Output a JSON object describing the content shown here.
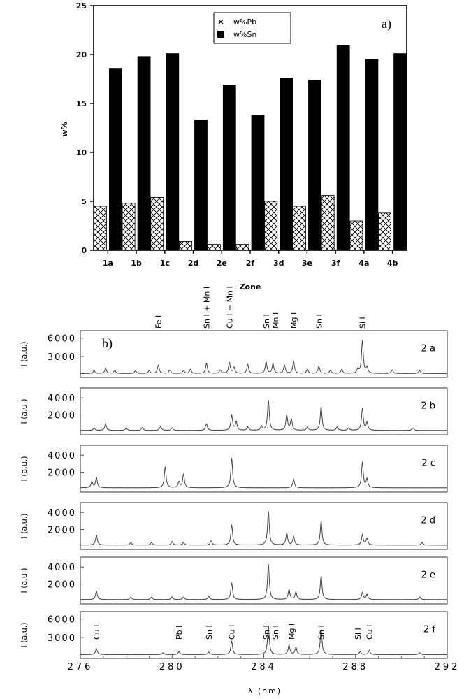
{
  "chart_data": [
    {
      "type": "bar",
      "panel_label": "a)",
      "xlabel": "Zone",
      "ylabel": "w%",
      "ylim": [
        0,
        25
      ],
      "yticks": [
        "0",
        "5",
        "10",
        "15",
        "20",
        "25"
      ],
      "categories": [
        "1a",
        "1b",
        "1c",
        "2d",
        "2e",
        "2f",
        "3d",
        "3e",
        "3f",
        "4a",
        "4b"
      ],
      "legend_position": "top-center",
      "series": [
        {
          "name": "w%Pb",
          "pattern": "crosshatch",
          "values": [
            4.5,
            4.8,
            5.4,
            0.9,
            0.6,
            0.6,
            5.0,
            4.5,
            5.6,
            3.0,
            3.8
          ]
        },
        {
          "name": "w%Sn",
          "pattern": "solid",
          "color": "#000000",
          "values": [
            18.6,
            19.8,
            20.1,
            13.3,
            16.9,
            13.8,
            17.6,
            17.4,
            20.9,
            19.5,
            20.1
          ]
        }
      ]
    },
    {
      "type": "line",
      "panel_label": "b)",
      "xlabel": "λ (nm)",
      "ylabel": "I (a.u.)",
      "xlim": [
        276,
        292
      ],
      "xticks": [
        "276",
        "280",
        "284",
        "288",
        "292"
      ],
      "panels": [
        {
          "name": "2 a",
          "ylim": [
            0,
            7000
          ],
          "yticks": [
            "3000",
            "6000"
          ],
          "peaks": [
            [
              276.6,
              500
            ],
            [
              277.1,
              900
            ],
            [
              277.5,
              600
            ],
            [
              278.4,
              450
            ],
            [
              279.0,
              500
            ],
            [
              279.4,
              1400
            ],
            [
              279.9,
              600
            ],
            [
              280.5,
              500
            ],
            [
              280.8,
              700
            ],
            [
              281.5,
              1700
            ],
            [
              282.1,
              600
            ],
            [
              282.5,
              1800
            ],
            [
              282.7,
              1000
            ],
            [
              283.3,
              1500
            ],
            [
              284.1,
              1900
            ],
            [
              284.4,
              1600
            ],
            [
              284.9,
              1400
            ],
            [
              285.3,
              2000
            ],
            [
              285.9,
              700
            ],
            [
              286.4,
              1200
            ],
            [
              286.9,
              500
            ],
            [
              287.4,
              700
            ],
            [
              288.1,
              700
            ],
            [
              288.3,
              5400
            ],
            [
              288.5,
              1000
            ],
            [
              289.6,
              600
            ],
            [
              290.8,
              500
            ]
          ]
        },
        {
          "name": "2 b",
          "ylim": [
            0,
            5000
          ],
          "yticks": [
            "2000",
            "4000"
          ],
          "peaks": [
            [
              276.6,
              300
            ],
            [
              277.1,
              800
            ],
            [
              278.0,
              300
            ],
            [
              278.7,
              350
            ],
            [
              279.5,
              500
            ],
            [
              280.0,
              300
            ],
            [
              281.5,
              800
            ],
            [
              282.6,
              1800
            ],
            [
              282.8,
              1000
            ],
            [
              283.3,
              400
            ],
            [
              283.9,
              500
            ],
            [
              284.2,
              3600
            ],
            [
              285.0,
              1800
            ],
            [
              285.2,
              1300
            ],
            [
              285.9,
              400
            ],
            [
              286.5,
              2800
            ],
            [
              287.2,
              400
            ],
            [
              287.7,
              300
            ],
            [
              288.3,
              2600
            ],
            [
              288.5,
              900
            ],
            [
              290.5,
              300
            ]
          ]
        },
        {
          "name": "2 c",
          "ylim": [
            0,
            5000
          ],
          "yticks": [
            "2000",
            "4000"
          ],
          "peaks": [
            [
              276.5,
              700
            ],
            [
              276.7,
              1200
            ],
            [
              279.7,
              2500
            ],
            [
              280.3,
              700
            ],
            [
              280.5,
              1600
            ],
            [
              282.6,
              3500
            ],
            [
              285.3,
              1000
            ],
            [
              288.3,
              3000
            ],
            [
              288.5,
              1000
            ]
          ]
        },
        {
          "name": "2 d",
          "ylim": [
            0,
            5000
          ],
          "yticks": [
            "2000",
            "4000"
          ],
          "peaks": [
            [
              276.7,
              1200
            ],
            [
              278.2,
              300
            ],
            [
              279.1,
              300
            ],
            [
              280.0,
              400
            ],
            [
              280.5,
              300
            ],
            [
              281.7,
              500
            ],
            [
              282.6,
              2400
            ],
            [
              284.2,
              4000
            ],
            [
              285.0,
              1400
            ],
            [
              285.3,
              1000
            ],
            [
              286.5,
              2800
            ],
            [
              288.3,
              1200
            ],
            [
              288.5,
              800
            ],
            [
              290.9,
              300
            ]
          ]
        },
        {
          "name": "2 e",
          "ylim": [
            0,
            5000
          ],
          "yticks": [
            "2000",
            "4000"
          ],
          "peaks": [
            [
              276.7,
              1000
            ],
            [
              278.2,
              300
            ],
            [
              279.1,
              300
            ],
            [
              280.0,
              300
            ],
            [
              280.5,
              300
            ],
            [
              281.6,
              400
            ],
            [
              282.6,
              2000
            ],
            [
              284.2,
              4200
            ],
            [
              285.1,
              1200
            ],
            [
              285.4,
              900
            ],
            [
              286.5,
              2800
            ],
            [
              288.3,
              800
            ],
            [
              288.5,
              600
            ],
            [
              290.8,
              300
            ]
          ]
        },
        {
          "name": "2 f",
          "ylim": [
            0,
            7000
          ],
          "yticks": [
            "3000",
            "6000"
          ],
          "peaks": [
            [
              276.7,
              1000
            ],
            [
              279.6,
              300
            ],
            [
              280.3,
              500
            ],
            [
              281.6,
              400
            ],
            [
              282.6,
              2200
            ],
            [
              284.2,
              4800
            ],
            [
              285.1,
              1600
            ],
            [
              285.4,
              1200
            ],
            [
              286.5,
              4200
            ],
            [
              288.2,
              500
            ],
            [
              288.6,
              700
            ],
            [
              290.8,
              300
            ]
          ]
        }
      ],
      "annotations": [
        {
          "panel": 0,
          "text": "Fe I",
          "x": 279.4
        },
        {
          "panel": 0,
          "text": "Sn I + Mn I",
          "x": 281.5
        },
        {
          "panel": 0,
          "text": "Cu I + Mn I",
          "x": 282.5
        },
        {
          "panel": 0,
          "text": "Sn I",
          "x": 284.1
        },
        {
          "panel": 0,
          "text": "Mn I",
          "x": 284.5
        },
        {
          "panel": 0,
          "text": "Mg I",
          "x": 285.3
        },
        {
          "panel": 0,
          "text": "Sn I",
          "x": 286.4
        },
        {
          "panel": 0,
          "text": "Si I",
          "x": 288.3
        },
        {
          "panel": 5,
          "text": "Cu I",
          "x": 276.7
        },
        {
          "panel": 5,
          "text": "Pb I",
          "x": 280.3
        },
        {
          "panel": 5,
          "text": "Sn I",
          "x": 281.6
        },
        {
          "panel": 5,
          "text": "Cu I",
          "x": 282.6
        },
        {
          "panel": 5,
          "text": "Sn I",
          "x": 284.1
        },
        {
          "panel": 5,
          "text": "Sn I",
          "x": 284.5
        },
        {
          "panel": 5,
          "text": "Mg I",
          "x": 285.2
        },
        {
          "panel": 5,
          "text": "Sn I",
          "x": 286.5
        },
        {
          "panel": 5,
          "text": "Si I",
          "x": 288.1
        },
        {
          "panel": 5,
          "text": "Cu I",
          "x": 288.6
        }
      ]
    }
  ]
}
